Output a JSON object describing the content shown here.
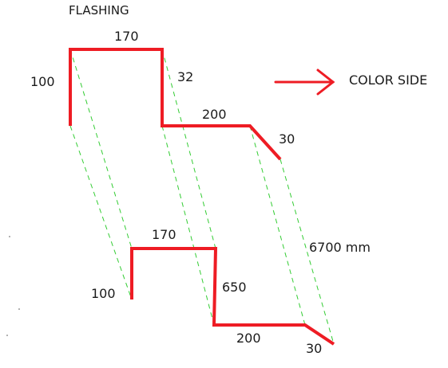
{
  "title": "FLASHING",
  "annotation": "COLOR SIDE",
  "top_profile": {
    "dims": {
      "left_height": "100",
      "top_width": "170",
      "right_drop": "32",
      "step_width": "200",
      "lip": "30"
    }
  },
  "bottom_profile": {
    "dims": {
      "top_width": "170",
      "left_height": "100",
      "right_drop": "650",
      "step_width": "200",
      "lip": "30"
    }
  },
  "length": "6700 mm",
  "colors": {
    "profile": "#ee1c24",
    "guide": "#33cc33",
    "arrow": "#ee1c24",
    "text": "#1a1a1a"
  }
}
